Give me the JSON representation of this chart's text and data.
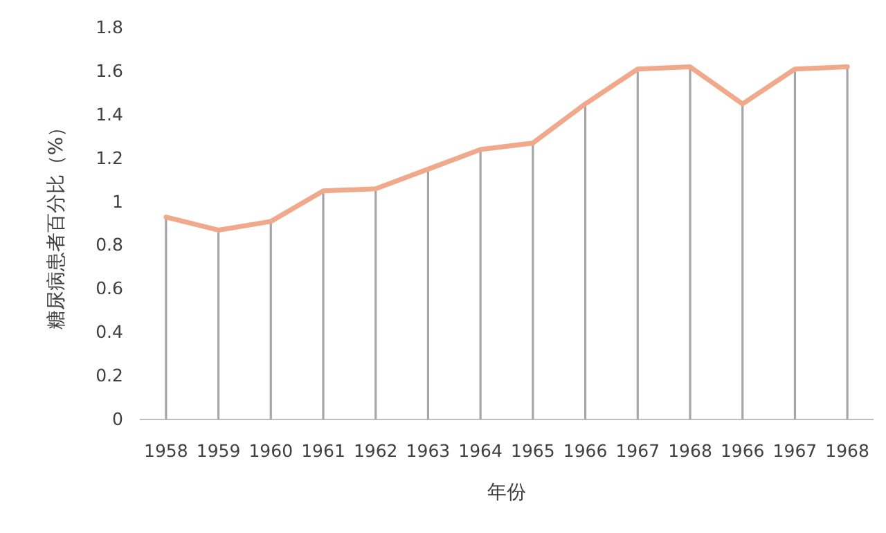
{
  "chart_data": {
    "type": "line",
    "xlabel": "年份",
    "ylabel": "糖尿病患者百分比（%）",
    "categories": [
      "1958",
      "1959",
      "1960",
      "1961",
      "1962",
      "1963",
      "1964",
      "1965",
      "1966",
      "1967",
      "1968",
      "1966",
      "1967",
      "1968"
    ],
    "series": [
      {
        "type": "bar",
        "color": "#a6a6a6",
        "values": [
          0.93,
          0.87,
          0.91,
          1.05,
          1.06,
          1.15,
          1.24,
          1.27,
          1.45,
          1.61,
          1.62,
          1.45,
          1.61,
          1.62
        ]
      },
      {
        "color": "#f0a98a",
        "values": [
          0.93,
          0.87,
          0.91,
          1.05,
          1.06,
          1.15,
          1.24,
          1.27,
          1.45,
          1.61,
          1.62,
          1.45,
          1.61,
          1.62
        ]
      }
    ],
    "ylim": [
      0,
      1.8
    ],
    "yticks": [
      0,
      0.2,
      0.4,
      0.6,
      0.8,
      1,
      1.2,
      1.4,
      1.6,
      1.8
    ],
    "marker": "none",
    "line_style": "solid"
  }
}
